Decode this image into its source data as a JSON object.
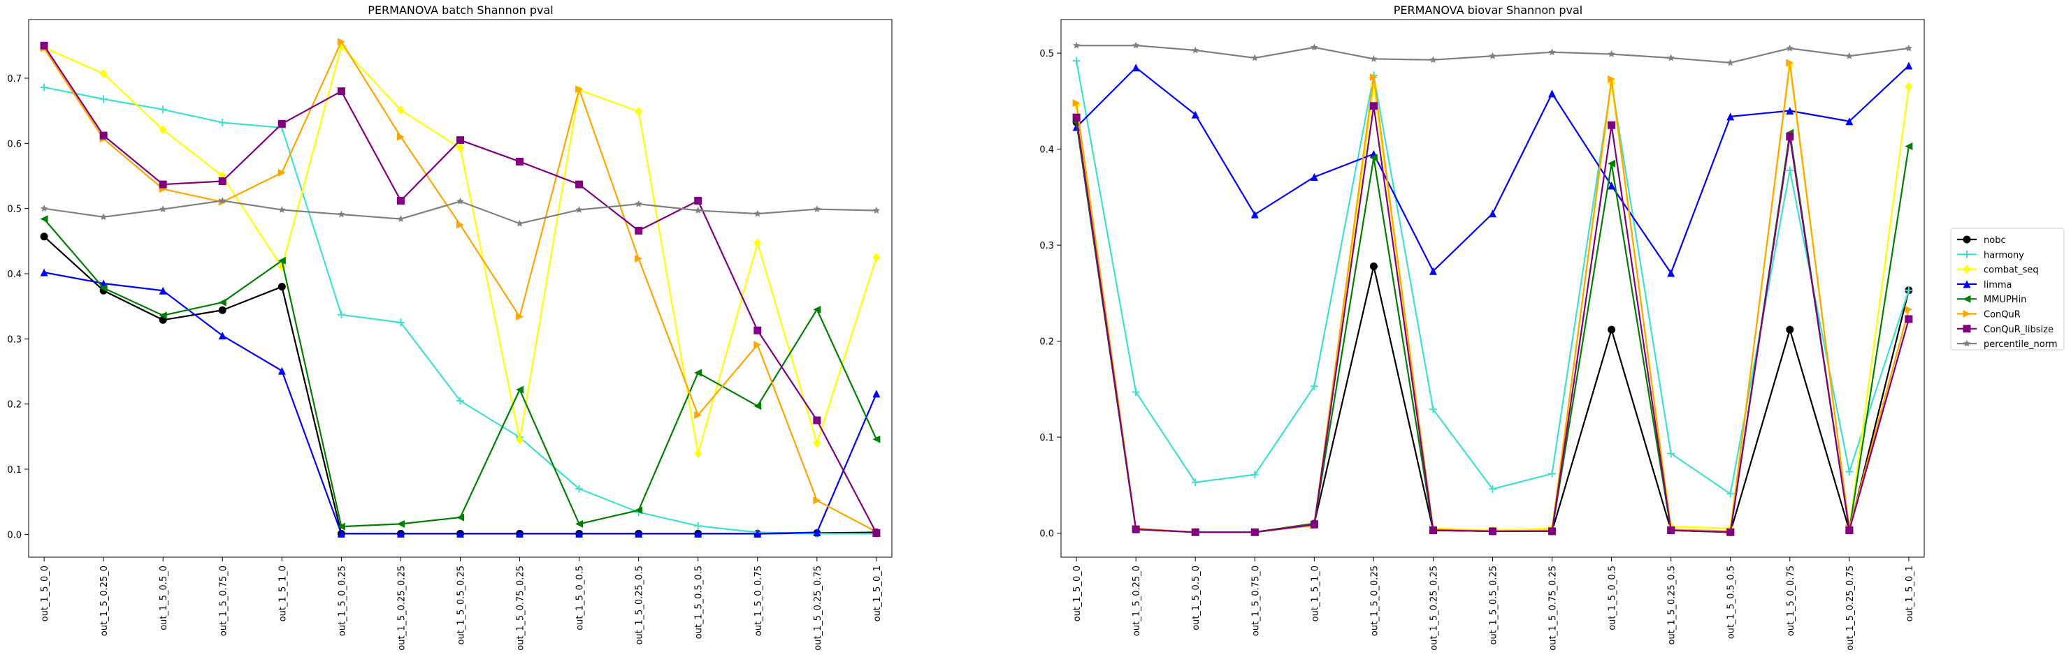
{
  "chart_data": [
    {
      "type": "line",
      "title": "PERMANOVA batch Shannon pval",
      "xlabel": "",
      "ylabel": "",
      "ylim": [
        -0.035,
        0.79
      ],
      "yticks": [
        0.0,
        0.1,
        0.2,
        0.3,
        0.4,
        0.5,
        0.6,
        0.7
      ],
      "grid": false,
      "categories": [
        "out_1_5_0_0",
        "out_1_5_0.25_0",
        "out_1_5_0.5_0",
        "out_1_5_0.75_0",
        "out_1_5_1_0",
        "out_1_5_0_0.25",
        "out_1_5_0.25_0.25",
        "out_1_5_0.5_0.25",
        "out_1_5_0.75_0.25",
        "out_1_5_0_0.5",
        "out_1_5_0.25_0.5",
        "out_1_5_0.5_0.5",
        "out_1_5_0_0.75",
        "out_1_5_0.25_0.75",
        "out_1_5_0_1"
      ],
      "series": [
        {
          "name": "nobc",
          "color": "#000000",
          "marker": "circle",
          "values": [
            0.457,
            0.374,
            0.329,
            0.344,
            0.38,
            0.001,
            0.001,
            0.001,
            0.001,
            0.001,
            0.001,
            0.001,
            0.001,
            0.002,
            0.003
          ]
        },
        {
          "name": "harmony",
          "color": "#40e0d0",
          "marker": "plus",
          "values": [
            0.686,
            0.668,
            0.652,
            0.632,
            0.624,
            0.337,
            0.325,
            0.205,
            0.149,
            0.07,
            0.034,
            0.013,
            0.003,
            0.001,
            0.001
          ]
        },
        {
          "name": "combat_seq",
          "color": "#ffff00",
          "marker": "diamond",
          "values": [
            0.747,
            0.707,
            0.621,
            0.55,
            0.41,
            0.749,
            0.651,
            0.593,
            0.145,
            0.682,
            0.649,
            0.124,
            0.447,
            0.14,
            0.425
          ]
        },
        {
          "name": "limma",
          "color": "#0000ff",
          "marker": "triangle-up",
          "values": [
            0.402,
            0.385,
            0.374,
            0.305,
            0.251,
            0.001,
            0.001,
            0.001,
            0.001,
            0.001,
            0.001,
            0.001,
            0.001,
            0.003,
            0.216
          ]
        },
        {
          "name": "MMUPHin",
          "color": "#008000",
          "marker": "triangle-left",
          "values": [
            0.484,
            0.378,
            0.336,
            0.356,
            0.42,
            0.012,
            0.016,
            0.026,
            0.222,
            0.016,
            0.037,
            0.248,
            0.197,
            0.345,
            0.146
          ]
        },
        {
          "name": "ConQuR",
          "color": "#ffa500",
          "marker": "triangle-right",
          "values": [
            0.746,
            0.607,
            0.53,
            0.51,
            0.555,
            0.756,
            0.61,
            0.475,
            0.334,
            0.683,
            0.423,
            0.183,
            0.291,
            0.052,
            0.004
          ]
        },
        {
          "name": "ConQuR_libsize",
          "color": "#800080",
          "marker": "square",
          "values": [
            0.75,
            0.612,
            0.537,
            0.542,
            0.63,
            0.68,
            0.512,
            0.605,
            0.572,
            0.537,
            0.466,
            0.512,
            0.313,
            0.175,
            0.002
          ]
        },
        {
          "name": "percentile_norm",
          "color": "#808080",
          "marker": "star",
          "values": [
            0.5,
            0.487,
            0.499,
            0.512,
            0.498,
            0.491,
            0.484,
            0.511,
            0.477,
            0.498,
            0.507,
            0.497,
            0.492,
            0.499,
            0.497
          ]
        }
      ]
    },
    {
      "type": "line",
      "title": "PERMANOVA biovar Shannon pval",
      "xlabel": "",
      "ylabel": "",
      "ylim": [
        -0.025,
        0.535
      ],
      "yticks": [
        0.0,
        0.1,
        0.2,
        0.3,
        0.4,
        0.5
      ],
      "grid": false,
      "categories": [
        "out_1_5_0_0",
        "out_1_5_0.25_0",
        "out_1_5_0.5_0",
        "out_1_5_0.75_0",
        "out_1_5_1_0",
        "out_1_5_0_0.25",
        "out_1_5_0.25_0.25",
        "out_1_5_0.5_0.25",
        "out_1_5_0.75_0.25",
        "out_1_5_0_0.5",
        "out_1_5_0.25_0.5",
        "out_1_5_0.5_0.5",
        "out_1_5_0_0.75",
        "out_1_5_0.25_0.75",
        "out_1_5_0_1"
      ],
      "series": [
        {
          "name": "nobc",
          "color": "#000000",
          "marker": "circle",
          "values": [
            0.428,
            0.004,
            0.001,
            0.001,
            0.01,
            0.278,
            0.003,
            0.002,
            0.002,
            0.212,
            0.003,
            0.001,
            0.212,
            0.003,
            0.253
          ]
        },
        {
          "name": "harmony",
          "color": "#40e0d0",
          "marker": "plus",
          "values": [
            0.492,
            0.147,
            0.053,
            0.061,
            0.153,
            0.477,
            0.129,
            0.046,
            0.062,
            0.469,
            0.083,
            0.041,
            0.378,
            0.064,
            0.253
          ]
        },
        {
          "name": "combat_seq",
          "color": "#ffff00",
          "marker": "diamond",
          "values": [
            0.446,
            0.004,
            0.001,
            0.001,
            0.009,
            0.466,
            0.005,
            0.003,
            0.005,
            0.469,
            0.007,
            0.005,
            0.487,
            0.005,
            0.465
          ]
        },
        {
          "name": "limma",
          "color": "#0000ff",
          "marker": "triangle-up",
          "values": [
            0.423,
            0.485,
            0.436,
            0.332,
            0.371,
            0.395,
            0.273,
            0.333,
            0.458,
            0.362,
            0.271,
            0.434,
            0.44,
            0.429,
            0.487
          ]
        },
        {
          "name": "MMUPHin",
          "color": "#008000",
          "marker": "triangle-left",
          "values": [
            0.428,
            0.004,
            0.001,
            0.001,
            0.01,
            0.391,
            0.003,
            0.002,
            0.002,
            0.385,
            0.003,
            0.001,
            0.417,
            0.003,
            0.403
          ]
        },
        {
          "name": "ConQuR",
          "color": "#ffa500",
          "marker": "triangle-right",
          "values": [
            0.448,
            0.005,
            0.001,
            0.001,
            0.008,
            0.475,
            0.004,
            0.002,
            0.003,
            0.473,
            0.004,
            0.002,
            0.49,
            0.005,
            0.233
          ]
        },
        {
          "name": "ConQuR_libsize",
          "color": "#800080",
          "marker": "square",
          "values": [
            0.433,
            0.004,
            0.001,
            0.001,
            0.009,
            0.445,
            0.003,
            0.002,
            0.002,
            0.425,
            0.003,
            0.001,
            0.413,
            0.003,
            0.223
          ]
        },
        {
          "name": "percentile_norm",
          "color": "#808080",
          "marker": "star",
          "values": [
            0.508,
            0.508,
            0.503,
            0.495,
            0.506,
            0.494,
            0.493,
            0.497,
            0.501,
            0.499,
            0.495,
            0.49,
            0.505,
            0.497,
            0.505
          ]
        }
      ]
    }
  ],
  "legend": {
    "placement": "right",
    "entries": [
      "nobc",
      "harmony",
      "combat_seq",
      "limma",
      "MMUPHin",
      "ConQuR",
      "ConQuR_libsize",
      "percentile_norm"
    ]
  }
}
